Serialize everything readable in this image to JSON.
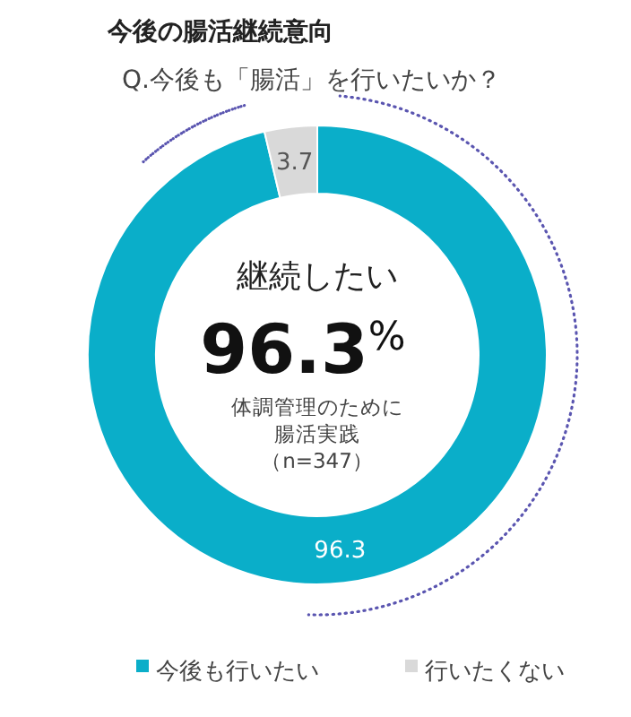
{
  "chart_data": {
    "type": "donut",
    "title": "今後の腸活継続意向",
    "subtitle": "Q.今後も「腸活」を行いたいか？",
    "categories": [
      "今後も行いたい",
      "行いたくない"
    ],
    "values": [
      96.3,
      3.7
    ],
    "colors": [
      "#0aaec9",
      "#d9d9d9"
    ],
    "data_labels": true,
    "legend": "bottom",
    "annotations": [
      "継続したい",
      "96.3$^{%}$",
      "体調管理のために",
      "腸活実践",
      "（n=347）"
    ]
  }
}
